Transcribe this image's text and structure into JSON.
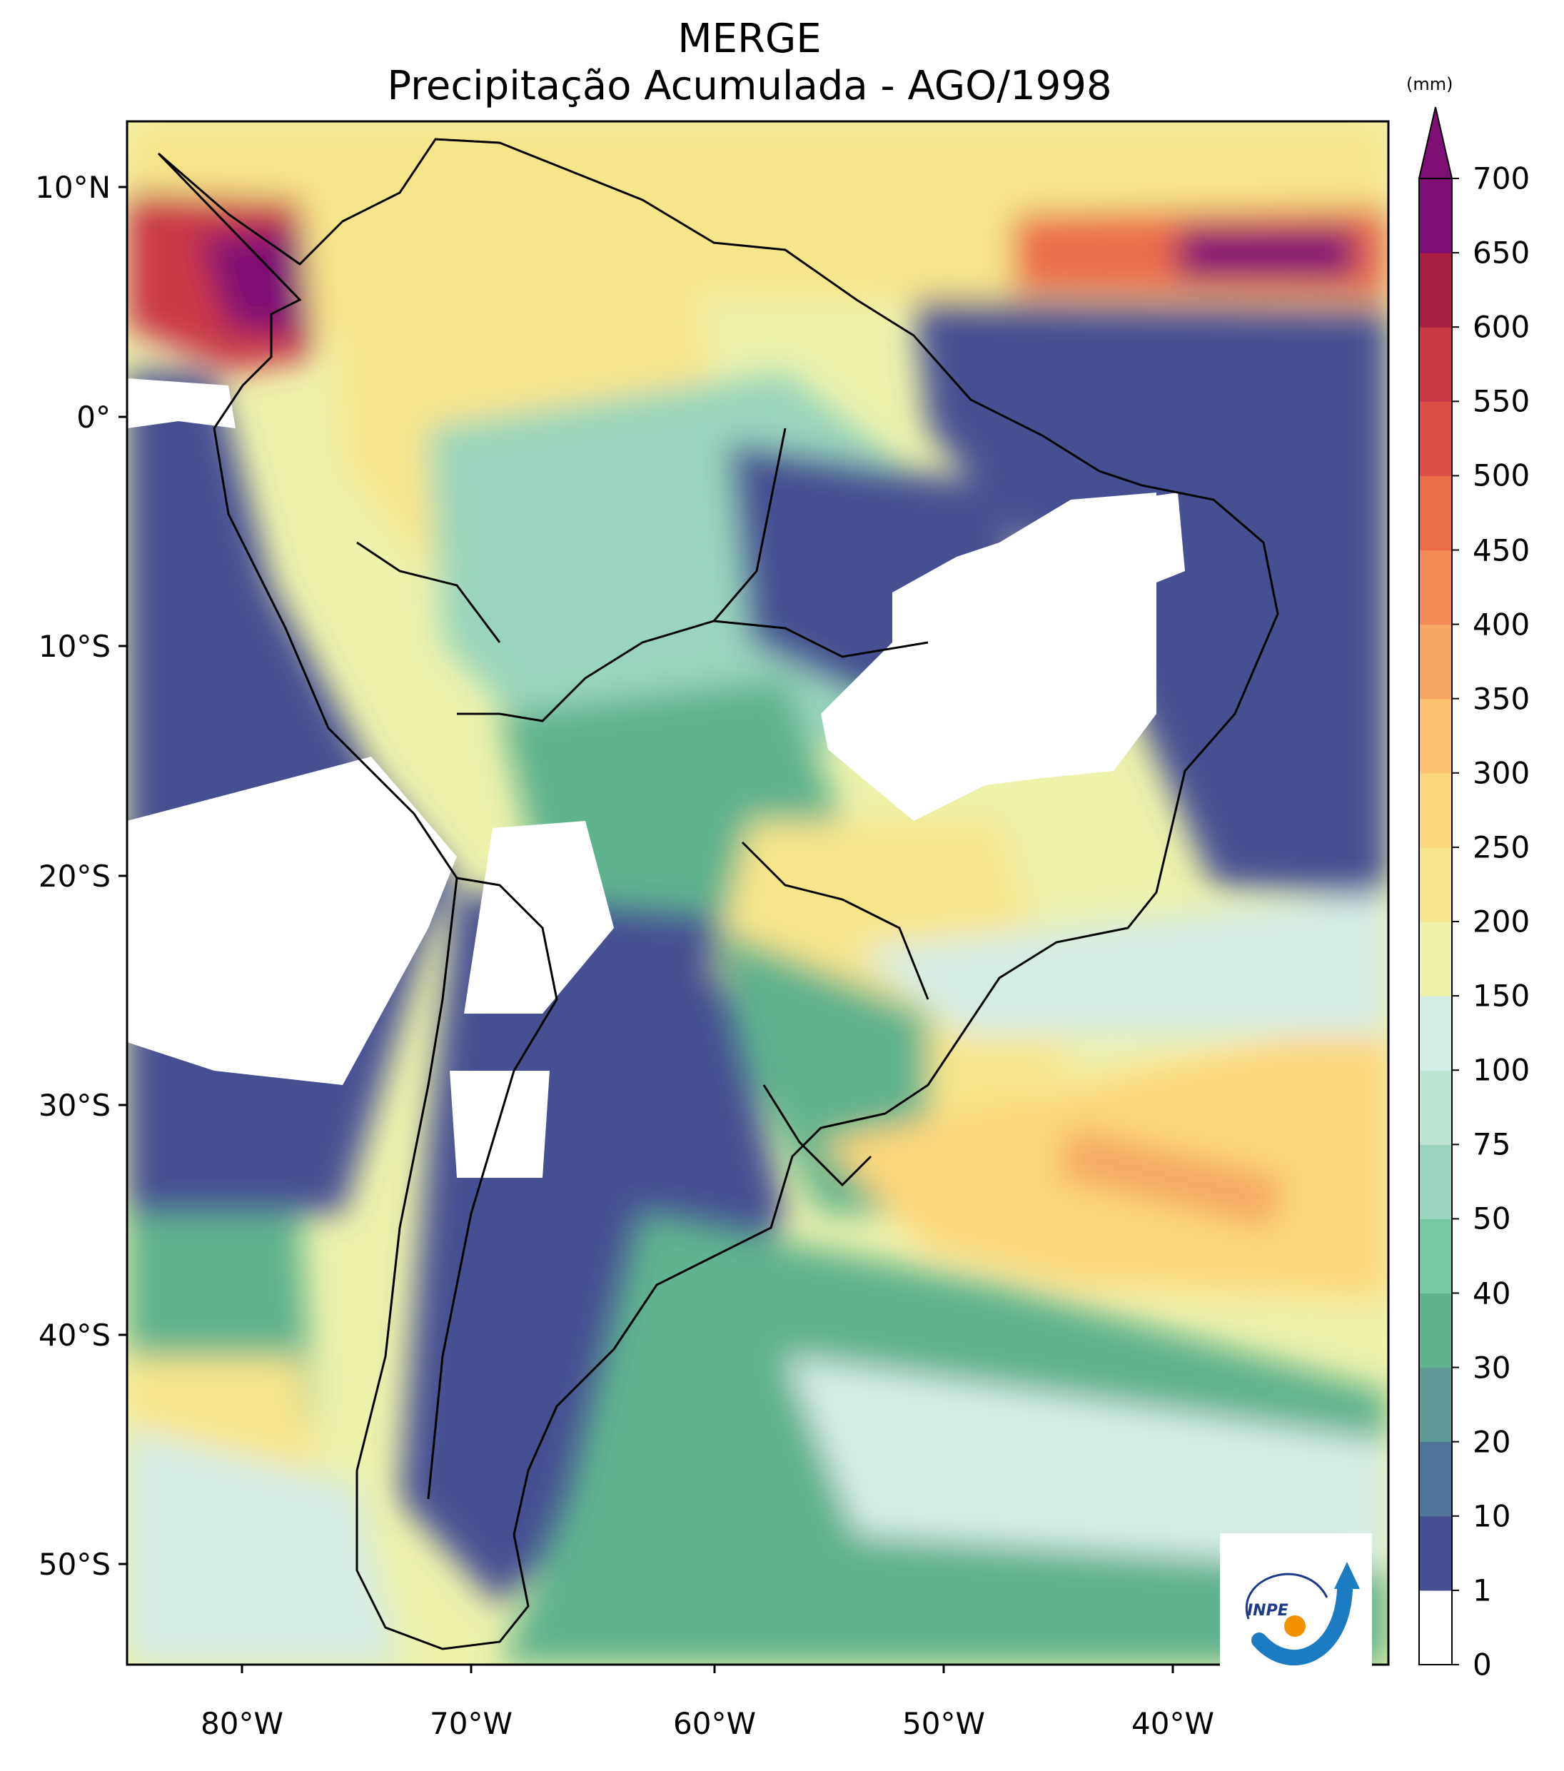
{
  "title": {
    "line1": "MERGE",
    "line2": "Precipitação Acumulada - AGO/1998"
  },
  "map": {
    "lat_ticks": [
      "10°N",
      "0°",
      "10°S",
      "20°S",
      "30°S",
      "40°S",
      "50°S"
    ],
    "lon_ticks": [
      "80°W",
      "70°W",
      "60°W",
      "50°W",
      "40°W"
    ],
    "extent": {
      "lon_min": -85,
      "lon_max": -30,
      "lat_min": -56,
      "lat_max": 13
    }
  },
  "colorbar": {
    "unit": "(mm)",
    "ticks": [
      "0",
      "1",
      "10",
      "20",
      "30",
      "40",
      "50",
      "75",
      "100",
      "150",
      "200",
      "250",
      "300",
      "350",
      "400",
      "450",
      "500",
      "550",
      "600",
      "650",
      "700"
    ],
    "colors": [
      "#ffffff",
      "#474f93",
      "#4f7499",
      "#5e9a95",
      "#5fb38f",
      "#76c9a2",
      "#99d5be",
      "#bde3d3",
      "#d6ece6",
      "#eef2ab",
      "#f5e58b",
      "#fbd77b",
      "#fbc272",
      "#f7a763",
      "#f38c57",
      "#ea6d48",
      "#dc4e44",
      "#c93846",
      "#aa1f44",
      "#7f0e75"
    ]
  },
  "logo": {
    "text": "INPE"
  }
}
